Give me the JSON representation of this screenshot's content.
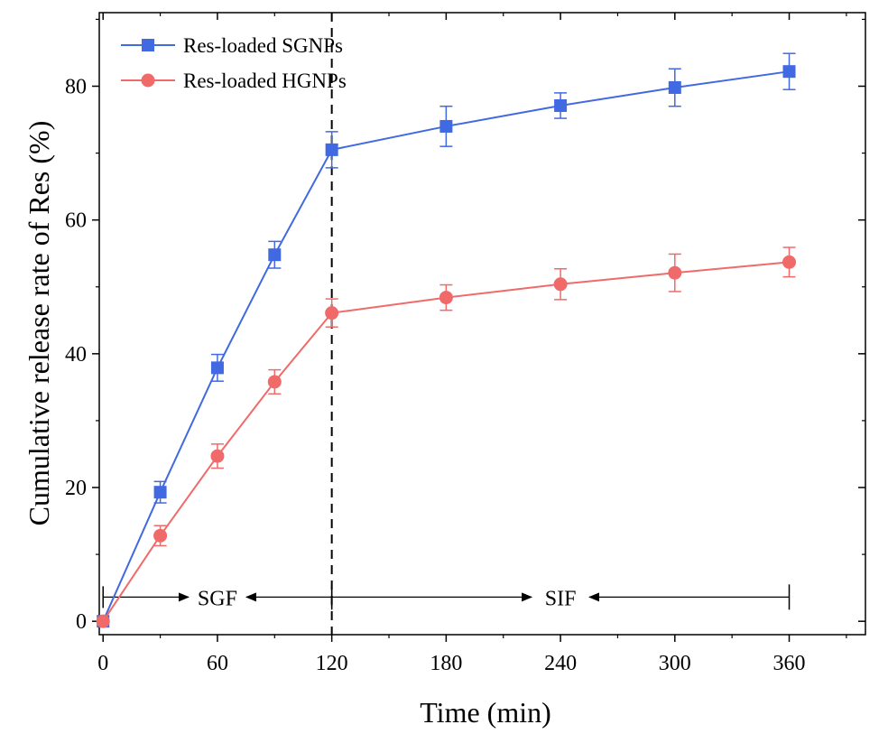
{
  "chart_data": {
    "type": "line",
    "title": "",
    "xlabel": "Time (min)",
    "ylabel": "Cumulative release rate of  Res (%)",
    "xlim": [
      -2,
      400
    ],
    "ylim": [
      -2,
      91
    ],
    "xticks": [
      0,
      60,
      120,
      180,
      240,
      300,
      360
    ],
    "yticks": [
      0,
      20,
      40,
      60,
      80
    ],
    "x_tick_labels": [
      "0",
      "60",
      "120",
      "180",
      "240",
      "300",
      "360"
    ],
    "y_tick_labels": [
      "0",
      "20",
      "40",
      "60",
      "80"
    ],
    "legend_position": "top-left",
    "grid": false,
    "series": [
      {
        "name": "Res-loaded SGNPs",
        "color": "#4169e1",
        "marker": "square",
        "x": [
          0,
          30,
          60,
          90,
          120,
          180,
          240,
          300,
          360
        ],
        "y": [
          0,
          19.3,
          37.9,
          54.8,
          70.5,
          74.0,
          77.1,
          79.8,
          82.2
        ],
        "error": [
          0,
          1.6,
          2.0,
          2.0,
          2.7,
          3.0,
          1.9,
          2.8,
          2.7
        ]
      },
      {
        "name": "Res-loaded HGNPs",
        "color": "#f06a6a",
        "marker": "circle",
        "x": [
          0,
          30,
          60,
          90,
          120,
          180,
          240,
          300,
          360
        ],
        "y": [
          0,
          12.8,
          24.7,
          35.8,
          46.1,
          48.4,
          50.4,
          52.1,
          53.7
        ],
        "error": [
          0,
          1.5,
          1.8,
          1.8,
          2.1,
          1.9,
          2.3,
          2.8,
          2.2
        ]
      }
    ],
    "annotations": {
      "divider_x": 120,
      "phase_y": 2,
      "phases": [
        {
          "label": "SGF",
          "start": 0,
          "end": 120,
          "label_at": 60
        },
        {
          "label": "SIF",
          "start": 120,
          "end": 360,
          "label_at": 240
        }
      ]
    }
  }
}
